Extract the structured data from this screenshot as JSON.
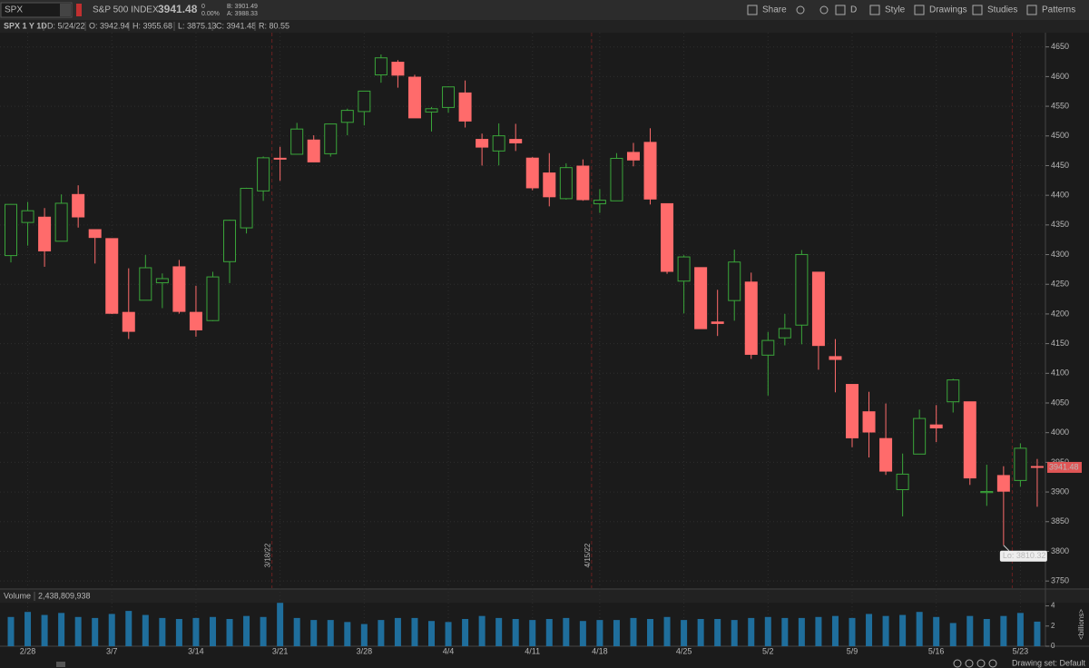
{
  "toolbar": {
    "symbol": "SPX",
    "description": "S&P 500 INDEX",
    "last": "3941.48",
    "change": "0",
    "change_pct": "0.00%",
    "bid": "B: 3901.49",
    "ask": "A: 3988.33",
    "buttons": [
      "Share",
      "D",
      "Style",
      "Drawings",
      "Studies",
      "Patterns"
    ]
  },
  "info_bar": {
    "title": "SPX 1 Y 1D",
    "items": [
      "D: 5/24/22",
      "O: 3942.94",
      "H: 3955.68",
      "L: 3875.13",
      "C: 3941.48",
      "R: 80.55"
    ]
  },
  "chart_data": [
    {
      "type": "candlestick",
      "categories": [
        null,
        "2/28",
        null,
        null,
        null,
        null,
        "3/7",
        null,
        null,
        null,
        null,
        "3/14",
        null,
        null,
        null,
        null,
        "3/21",
        null,
        null,
        null,
        null,
        "3/28",
        null,
        null,
        null,
        null,
        "4/4",
        null,
        null,
        null,
        null,
        "4/11",
        null,
        null,
        null,
        "4/18",
        null,
        null,
        null,
        null,
        "4/25",
        null,
        null,
        null,
        null,
        "5/2",
        null,
        null,
        null,
        null,
        "5/9",
        null,
        null,
        null,
        null,
        "5/16",
        null,
        null,
        null,
        null,
        "5/23",
        null
      ],
      "open": [
        4298.38,
        4354.17,
        4363.14,
        4322.56,
        4401.31,
        4342.12,
        4327.01,
        4202.66,
        4223.1,
        4252.55,
        4279.5,
        4202.75,
        4188.82,
        4288.14,
        4345.11,
        4407.34,
        4462.4,
        4469.1,
        4493.1,
        4469.98,
        4522.91,
        4541.09,
        4602.86,
        4624.2,
        4599.02,
        4540.32,
        4547.97,
        4572.45,
        4494.17,
        4474.65,
        4494.15,
        4462.64,
        4437.59,
        4394.3,
        4449.12,
        4385.63,
        4390.63,
        4472.26,
        4489.17,
        4385.83,
        4255.34,
        4278.14,
        4186.52,
        4222.58,
        4253.75,
        4130.61,
        4159.78,
        4181.18,
        4270.43,
        4128.17,
        4081.27,
        4035.18,
        3990.08,
        3903.95,
        3963.9,
        4013.02,
        4052.0,
        4051.98,
        3899.0,
        3927.76,
        3919.42,
        3942.94
      ],
      "high": [
        4385.34,
        4388.84,
        4378.45,
        4401.48,
        4416.78,
        4342.12,
        4327.01,
        4276.94,
        4299.4,
        4268.28,
        4291.01,
        4247.57,
        4271.05,
        4358.9,
        4412.67,
        4465.4,
        4481.75,
        4522.0,
        4501.07,
        4520.58,
        4546.03,
        4575.65,
        4637.3,
        4627.77,
        4603.07,
        4548.7,
        4583.5,
        4593.45,
        4503.94,
        4521.16,
        4520.41,
        4464.35,
        4471.0,
        4453.92,
        4460.46,
        4410.31,
        4471.03,
        4488.29,
        4512.94,
        4385.83,
        4299.02,
        4278.14,
        4240.71,
        4308.45,
        4269.68,
        4169.81,
        4200.1,
        4307.66,
        4270.43,
        4157.69,
        4081.27,
        4068.82,
        4049.09,
        3964.8,
        4038.88,
        4046.46,
        4090.72,
        4051.98,
        3945.96,
        3943.42,
        3981.88,
        3955.68
      ],
      "low": [
        4286.83,
        4315.12,
        4279.54,
        4322.56,
        4345.56,
        4284.98,
        4199.85,
        4157.87,
        4223.1,
        4209.8,
        4200.49,
        4161.72,
        4187.9,
        4251.99,
        4335.65,
        4390.57,
        4424.3,
        4469.1,
        4455.81,
        4465.17,
        4501.07,
        4517.69,
        4589.66,
        4581.32,
        4530.41,
        4507.57,
        4539.21,
        4514.17,
        4450.04,
        4450.3,
        4474.6,
        4408.38,
        4381.34,
        4392.7,
        4390.77,
        4370.3,
        4390.63,
        4448.76,
        4384.47,
        4267.62,
        4200.82,
        4175.04,
        4162.9,
        4188.63,
        4124.28,
        4062.51,
        4147.08,
        4148.91,
        4106.01,
        4067.91,
        3975.48,
        3958.17,
        3928.82,
        3858.87,
        3963.9,
        3983.99,
        4033.93,
        3911.91,
        3876.58,
        3810.32,
        3909.04,
        3875.13
      ],
      "close": [
        4384.65,
        4373.94,
        4306.26,
        4386.54,
        4363.49,
        4328.87,
        4201.09,
        4170.7,
        4277.88,
        4259.52,
        4204.31,
        4173.11,
        4262.45,
        4357.86,
        4411.67,
        4463.12,
        4461.18,
        4511.61,
        4456.24,
        4520.16,
        4543.06,
        4575.52,
        4631.6,
        4602.45,
        4530.41,
        4545.86,
        4582.64,
        4525.12,
        4481.15,
        4500.21,
        4488.28,
        4412.53,
        4397.45,
        4446.59,
        4392.59,
        4391.69,
        4462.21,
        4459.45,
        4393.66,
        4271.78,
        4296.12,
        4175.2,
        4183.96,
        4287.5,
        4131.93,
        4155.38,
        4175.48,
        4300.17,
        4146.87,
        4123.34,
        3991.24,
        4001.05,
        3935.18,
        3930.08,
        4023.89,
        4008.01,
        4088.85,
        3923.68,
        3900.79,
        3901.36,
        3973.75,
        3941.48
      ],
      "up_color": "#3aa63a",
      "down_color": "#ff6b6b",
      "ylim": [
        3738,
        4674
      ],
      "yticks": [
        3750,
        3800,
        3850,
        3900,
        3950,
        4000,
        4050,
        4100,
        4150,
        4200,
        4250,
        4300,
        4350,
        4400,
        4450,
        4500,
        4550,
        4600,
        4650
      ],
      "grid": true,
      "expiration_labels": [
        "3/18/22",
        "4/15/22"
      ],
      "low_label": "Lo: 3810.32"
    },
    {
      "type": "bar",
      "title": "Volume",
      "readout": "2,438,809,938",
      "y_label": "<billions>",
      "color": "#1f6e9c",
      "values": [
        2.9,
        3.4,
        3.1,
        3.3,
        2.9,
        2.8,
        3.2,
        3.5,
        3.1,
        2.8,
        2.7,
        2.8,
        2.9,
        2.7,
        3.0,
        2.9,
        4.3,
        2.8,
        2.6,
        2.6,
        2.4,
        2.2,
        2.6,
        2.8,
        2.8,
        2.5,
        2.4,
        2.7,
        3.0,
        2.8,
        2.7,
        2.6,
        2.7,
        2.8,
        2.5,
        2.6,
        2.6,
        2.8,
        2.7,
        2.9,
        2.6,
        2.7,
        2.7,
        2.6,
        2.8,
        2.9,
        2.8,
        2.8,
        2.9,
        3.0,
        2.8,
        3.2,
        3.0,
        3.1,
        3.4,
        2.9,
        2.3,
        3.0,
        2.7,
        3.0,
        3.3,
        2.438809938
      ],
      "ylim": [
        0,
        4.5
      ],
      "yticks": [
        0,
        2,
        4
      ]
    }
  ],
  "footer": {
    "drawing_set": "Drawing set: Default"
  }
}
